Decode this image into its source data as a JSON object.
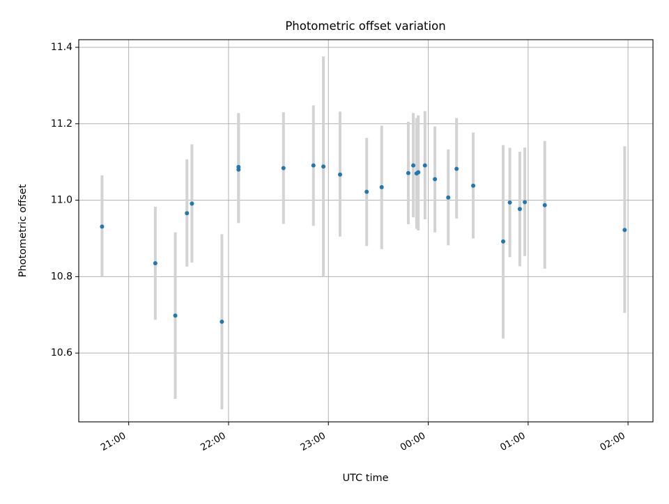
{
  "chart_data": {
    "type": "scatter",
    "title": "Photometric offset variation",
    "xlabel": "UTC time",
    "ylabel": "Photometric offset",
    "x_axis_type": "time",
    "xlim": [
      "20:30",
      "02:15"
    ],
    "ylim": [
      10.42,
      11.42
    ],
    "x_ticks": [
      "21:00",
      "22:00",
      "23:00",
      "00:00",
      "01:00",
      "02:00"
    ],
    "y_ticks": [
      10.6,
      10.8,
      11.0,
      11.2,
      11.4
    ],
    "grid": true,
    "legend": "none",
    "errorbar_color": "#d3d3d3",
    "marker_color": "#1f77b4",
    "points": [
      {
        "time": "20:44",
        "y": 10.931,
        "ylow": 10.8,
        "yhigh": 11.065
      },
      {
        "time": "21:16",
        "y": 10.835,
        "ylow": 10.687,
        "yhigh": 10.983
      },
      {
        "time": "21:28",
        "y": 10.698,
        "ylow": 10.48,
        "yhigh": 10.916
      },
      {
        "time": "21:35",
        "y": 10.966,
        "ylow": 10.826,
        "yhigh": 11.107
      },
      {
        "time": "21:38",
        "y": 10.991,
        "ylow": 10.837,
        "yhigh": 11.146
      },
      {
        "time": "21:56",
        "y": 10.682,
        "ylow": 10.453,
        "yhigh": 10.911
      },
      {
        "time": "22:06",
        "y": 11.08,
        "ylow": 10.94,
        "yhigh": 11.228
      },
      {
        "time": "22:06",
        "y": 11.087,
        "ylow": 10.945,
        "yhigh": 11.225
      },
      {
        "time": "22:33",
        "y": 11.084,
        "ylow": 10.938,
        "yhigh": 11.23
      },
      {
        "time": "22:51",
        "y": 11.091,
        "ylow": 10.933,
        "yhigh": 11.248
      },
      {
        "time": "22:57",
        "y": 11.088,
        "ylow": 10.8,
        "yhigh": 11.376
      },
      {
        "time": "23:07",
        "y": 11.067,
        "ylow": 10.905,
        "yhigh": 11.232
      },
      {
        "time": "23:23",
        "y": 11.022,
        "ylow": 10.88,
        "yhigh": 11.163
      },
      {
        "time": "23:32",
        "y": 11.034,
        "ylow": 10.872,
        "yhigh": 11.195
      },
      {
        "time": "23:48",
        "y": 11.071,
        "ylow": 10.937,
        "yhigh": 11.205
      },
      {
        "time": "23:51",
        "y": 11.091,
        "ylow": 10.955,
        "yhigh": 11.228
      },
      {
        "time": "23:53",
        "y": 11.07,
        "ylow": 10.925,
        "yhigh": 11.215
      },
      {
        "time": "23:54",
        "y": 11.073,
        "ylow": 10.921,
        "yhigh": 11.222
      },
      {
        "time": "23:58",
        "y": 11.091,
        "ylow": 10.95,
        "yhigh": 11.233
      },
      {
        "time": "00:04",
        "y": 11.055,
        "ylow": 10.916,
        "yhigh": 11.193
      },
      {
        "time": "00:12",
        "y": 11.007,
        "ylow": 10.882,
        "yhigh": 11.133
      },
      {
        "time": "00:17",
        "y": 11.082,
        "ylow": 10.952,
        "yhigh": 11.215
      },
      {
        "time": "00:27",
        "y": 11.038,
        "ylow": 10.9,
        "yhigh": 11.177
      },
      {
        "time": "00:45",
        "y": 10.892,
        "ylow": 10.638,
        "yhigh": 11.144
      },
      {
        "time": "00:49",
        "y": 10.994,
        "ylow": 10.851,
        "yhigh": 11.137
      },
      {
        "time": "00:55",
        "y": 10.977,
        "ylow": 10.827,
        "yhigh": 11.127
      },
      {
        "time": "00:58",
        "y": 10.995,
        "ylow": 10.854,
        "yhigh": 11.138
      },
      {
        "time": "01:10",
        "y": 10.987,
        "ylow": 10.821,
        "yhigh": 11.155
      },
      {
        "time": "01:58",
        "y": 10.922,
        "ylow": 10.705,
        "yhigh": 11.141
      }
    ]
  }
}
